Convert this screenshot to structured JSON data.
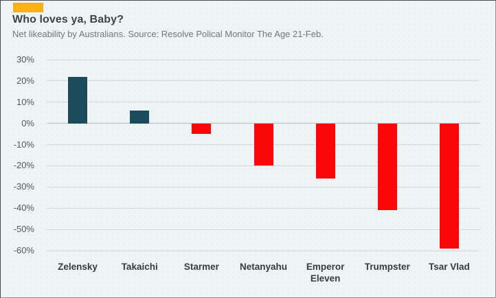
{
  "header": {
    "accent_color": "#fbb115"
  },
  "chart_data": {
    "type": "bar",
    "title": "Who loves ya, Baby?",
    "subtitle": "Net likeability by Australians. Source: Resolve Polical Monitor The Age 21-Feb.",
    "categories": [
      "Zelensky",
      "Takaichi",
      "Starmer",
      "Netanyahu",
      "Emperor Eleven",
      "Trumpster",
      "Tsar Vlad"
    ],
    "values": [
      22,
      6,
      -5,
      -20,
      -26,
      -41,
      -59
    ],
    "unit": "%",
    "xlabel": "",
    "ylabel": "",
    "ylim": [
      -60,
      30
    ],
    "yticks": [
      30,
      20,
      10,
      0,
      -10,
      -20,
      -30,
      -40,
      -50,
      -60
    ],
    "ytick_labels": [
      "30%",
      "20%",
      "10%",
      "0%",
      "-10%",
      "-20%",
      "-30%",
      "-40%",
      "-50%",
      "-60%"
    ],
    "grid": true,
    "legend_position": "none",
    "positive_color": "#1a4c5d",
    "negative_color": "#fb0707"
  }
}
